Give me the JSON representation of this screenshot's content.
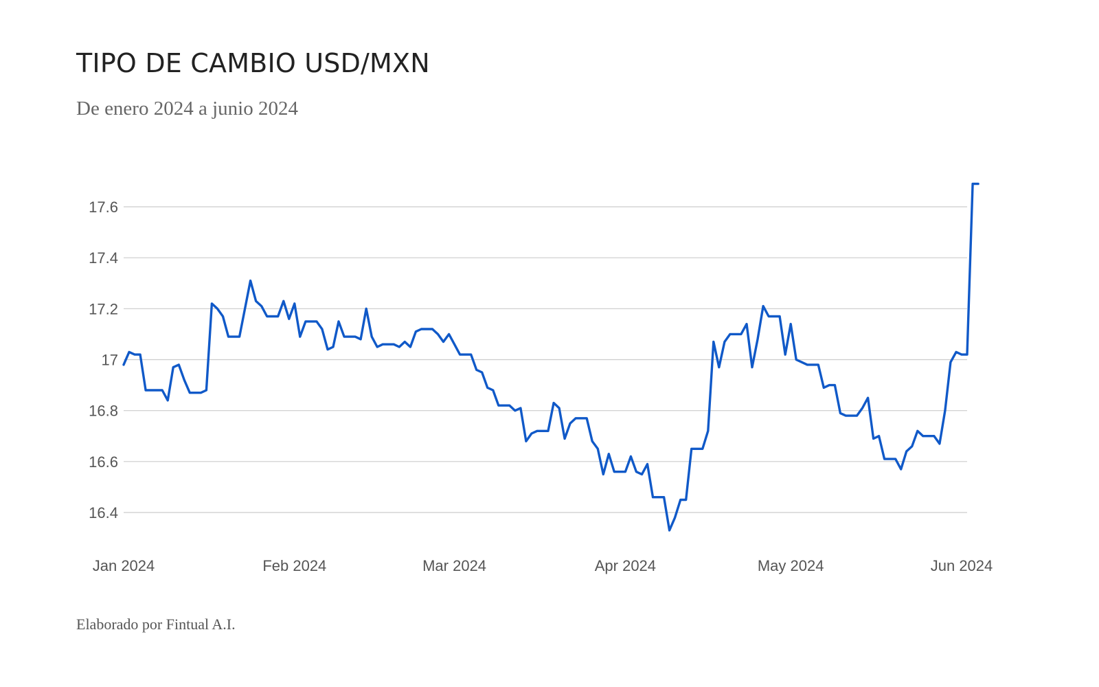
{
  "header": {
    "title": "TIPO DE CAMBIO USD/MXN",
    "subtitle": "De enero 2024 a junio 2024"
  },
  "footer": {
    "credit": "Elaborado por Fintual A.I."
  },
  "colors": {
    "line": "#1059c8",
    "grid": "#cccccc",
    "text": "#222222"
  },
  "chart_data": {
    "type": "line",
    "title": "TIPO DE CAMBIO USD/MXN",
    "subtitle": "De enero 2024 a junio 2024",
    "xlabel": "",
    "ylabel": "",
    "x_ticks": [
      {
        "date": "2024-01-01",
        "label": "Jan 2024"
      },
      {
        "date": "2024-02-01",
        "label": "Feb 2024"
      },
      {
        "date": "2024-03-01",
        "label": "Mar 2024"
      },
      {
        "date": "2024-04-01",
        "label": "Apr 2024"
      },
      {
        "date": "2024-05-01",
        "label": "May 2024"
      },
      {
        "date": "2024-06-01",
        "label": "Jun 2024"
      }
    ],
    "y_ticks": [
      {
        "value": 16.4,
        "label": "16.4"
      },
      {
        "value": 16.6,
        "label": "16.6"
      },
      {
        "value": 16.8,
        "label": "16.8"
      },
      {
        "value": 17.0,
        "label": "17"
      },
      {
        "value": 17.2,
        "label": "17.2"
      },
      {
        "value": 17.4,
        "label": "17.4"
      },
      {
        "value": 17.6,
        "label": "17.6"
      }
    ],
    "ylim": [
      16.3,
      17.7
    ],
    "xlim": [
      "2024-01-01",
      "2024-06-02"
    ],
    "grid": "horizontal",
    "legend": "none",
    "series": [
      {
        "points": [
          [
            "2024-01-01",
            16.98
          ],
          [
            "2024-01-02",
            17.03
          ],
          [
            "2024-01-03",
            17.02
          ],
          [
            "2024-01-04",
            17.02
          ],
          [
            "2024-01-05",
            16.88
          ],
          [
            "2024-01-08",
            16.88
          ],
          [
            "2024-01-09",
            16.84
          ],
          [
            "2024-01-10",
            16.97
          ],
          [
            "2024-01-11",
            16.98
          ],
          [
            "2024-01-12",
            16.92
          ],
          [
            "2024-01-13",
            16.87
          ],
          [
            "2024-01-15",
            16.87
          ],
          [
            "2024-01-16",
            16.88
          ],
          [
            "2024-01-17",
            17.22
          ],
          [
            "2024-01-18",
            17.2
          ],
          [
            "2024-01-19",
            17.17
          ],
          [
            "2024-01-20",
            17.09
          ],
          [
            "2024-01-22",
            17.09
          ],
          [
            "2024-01-23",
            17.2
          ],
          [
            "2024-01-24",
            17.31
          ],
          [
            "2024-01-25",
            17.23
          ],
          [
            "2024-01-26",
            17.21
          ],
          [
            "2024-01-27",
            17.17
          ],
          [
            "2024-01-29",
            17.17
          ],
          [
            "2024-01-30",
            17.23
          ],
          [
            "2024-01-31",
            17.16
          ],
          [
            "2024-02-01",
            17.22
          ],
          [
            "2024-02-02",
            17.09
          ],
          [
            "2024-02-03",
            17.15
          ],
          [
            "2024-02-05",
            17.15
          ],
          [
            "2024-02-06",
            17.12
          ],
          [
            "2024-02-07",
            17.04
          ],
          [
            "2024-02-08",
            17.05
          ],
          [
            "2024-02-09",
            17.15
          ],
          [
            "2024-02-10",
            17.09
          ],
          [
            "2024-02-12",
            17.09
          ],
          [
            "2024-02-13",
            17.08
          ],
          [
            "2024-02-14",
            17.2
          ],
          [
            "2024-02-15",
            17.09
          ],
          [
            "2024-02-16",
            17.05
          ],
          [
            "2024-02-17",
            17.06
          ],
          [
            "2024-02-19",
            17.06
          ],
          [
            "2024-02-20",
            17.05
          ],
          [
            "2024-02-21",
            17.07
          ],
          [
            "2024-02-22",
            17.05
          ],
          [
            "2024-02-23",
            17.11
          ],
          [
            "2024-02-24",
            17.12
          ],
          [
            "2024-02-26",
            17.12
          ],
          [
            "2024-02-27",
            17.1
          ],
          [
            "2024-02-28",
            17.07
          ],
          [
            "2024-02-29",
            17.1
          ],
          [
            "2024-03-01",
            17.06
          ],
          [
            "2024-03-02",
            17.02
          ],
          [
            "2024-03-04",
            17.02
          ],
          [
            "2024-03-05",
            16.96
          ],
          [
            "2024-03-06",
            16.95
          ],
          [
            "2024-03-07",
            16.89
          ],
          [
            "2024-03-08",
            16.88
          ],
          [
            "2024-03-09",
            16.82
          ],
          [
            "2024-03-11",
            16.82
          ],
          [
            "2024-03-12",
            16.8
          ],
          [
            "2024-03-13",
            16.81
          ],
          [
            "2024-03-14",
            16.68
          ],
          [
            "2024-03-15",
            16.71
          ],
          [
            "2024-03-16",
            16.72
          ],
          [
            "2024-03-18",
            16.72
          ],
          [
            "2024-03-19",
            16.83
          ],
          [
            "2024-03-20",
            16.81
          ],
          [
            "2024-03-21",
            16.69
          ],
          [
            "2024-03-22",
            16.75
          ],
          [
            "2024-03-23",
            16.77
          ],
          [
            "2024-03-25",
            16.77
          ],
          [
            "2024-03-26",
            16.68
          ],
          [
            "2024-03-27",
            16.65
          ],
          [
            "2024-03-28",
            16.55
          ],
          [
            "2024-03-29",
            16.63
          ],
          [
            "2024-03-30",
            16.56
          ],
          [
            "2024-04-01",
            16.56
          ],
          [
            "2024-04-02",
            16.62
          ],
          [
            "2024-04-03",
            16.56
          ],
          [
            "2024-04-04",
            16.55
          ],
          [
            "2024-04-05",
            16.59
          ],
          [
            "2024-04-06",
            16.46
          ],
          [
            "2024-04-08",
            16.46
          ],
          [
            "2024-04-09",
            16.33
          ],
          [
            "2024-04-10",
            16.38
          ],
          [
            "2024-04-11",
            16.45
          ],
          [
            "2024-04-12",
            16.45
          ],
          [
            "2024-04-13",
            16.65
          ],
          [
            "2024-04-15",
            16.65
          ],
          [
            "2024-04-16",
            16.72
          ],
          [
            "2024-04-17",
            17.07
          ],
          [
            "2024-04-18",
            16.97
          ],
          [
            "2024-04-19",
            17.07
          ],
          [
            "2024-04-20",
            17.1
          ],
          [
            "2024-04-22",
            17.1
          ],
          [
            "2024-04-23",
            17.14
          ],
          [
            "2024-04-24",
            16.97
          ],
          [
            "2024-04-25",
            17.08
          ],
          [
            "2024-04-26",
            17.21
          ],
          [
            "2024-04-27",
            17.17
          ],
          [
            "2024-04-29",
            17.17
          ],
          [
            "2024-04-30",
            17.02
          ],
          [
            "2024-05-01",
            17.14
          ],
          [
            "2024-05-02",
            17.0
          ],
          [
            "2024-05-03",
            16.99
          ],
          [
            "2024-05-04",
            16.98
          ],
          [
            "2024-05-06",
            16.98
          ],
          [
            "2024-05-07",
            16.89
          ],
          [
            "2024-05-08",
            16.9
          ],
          [
            "2024-05-09",
            16.9
          ],
          [
            "2024-05-10",
            16.79
          ],
          [
            "2024-05-11",
            16.78
          ],
          [
            "2024-05-13",
            16.78
          ],
          [
            "2024-05-14",
            16.81
          ],
          [
            "2024-05-15",
            16.85
          ],
          [
            "2024-05-16",
            16.69
          ],
          [
            "2024-05-17",
            16.7
          ],
          [
            "2024-05-18",
            16.61
          ],
          [
            "2024-05-20",
            16.61
          ],
          [
            "2024-05-21",
            16.57
          ],
          [
            "2024-05-22",
            16.64
          ],
          [
            "2024-05-23",
            16.66
          ],
          [
            "2024-05-24",
            16.72
          ],
          [
            "2024-05-25",
            16.7
          ],
          [
            "2024-05-27",
            16.7
          ],
          [
            "2024-05-28",
            16.67
          ],
          [
            "2024-05-29",
            16.8
          ],
          [
            "2024-05-30",
            16.99
          ],
          [
            "2024-05-31",
            17.03
          ],
          [
            "2024-06-01",
            17.02
          ],
          [
            "2024-06-02",
            17.02
          ],
          [
            "2024-06-03",
            17.69
          ],
          [
            "2024-06-04",
            17.69
          ]
        ]
      }
    ]
  }
}
